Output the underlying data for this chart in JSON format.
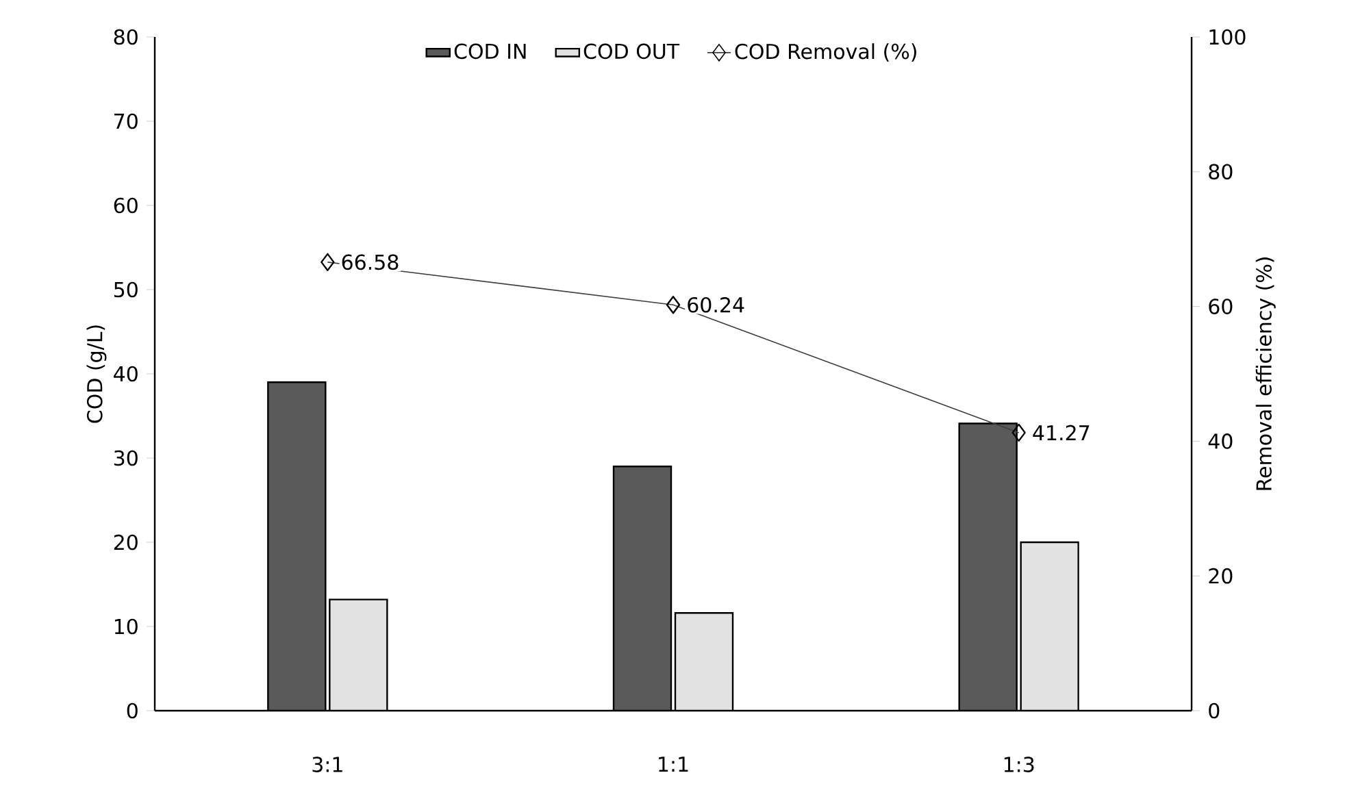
{
  "chart_data": {
    "type": "bar",
    "ylabel": "COD (g/L)",
    "y2label": "Removal efficiency (%)",
    "categories": [
      "3:1",
      "1:1",
      "1:3"
    ],
    "series": [
      {
        "name": "COD IN",
        "color": "#5a5a5a",
        "values": [
          39.0,
          29.0,
          34.1
        ]
      },
      {
        "name": "COD OUT",
        "color": "#e2e2e2",
        "values": [
          13.2,
          11.6,
          20.0
        ]
      },
      {
        "name": "COD Removal (%)",
        "type": "line",
        "axis": "y2",
        "color": "#404040",
        "marker": "diamond",
        "values": [
          66.58,
          60.24,
          41.27
        ],
        "value_labels": [
          "66.58",
          "60.24",
          "41.27"
        ]
      }
    ],
    "ylim": [
      0,
      80
    ],
    "yticks": [
      0,
      10,
      20,
      30,
      40,
      50,
      60,
      70,
      80
    ],
    "y2lim": [
      0,
      100
    ],
    "y2ticks": [
      0,
      20,
      40,
      60,
      80,
      100
    ],
    "legend": "top",
    "grid": false
  }
}
